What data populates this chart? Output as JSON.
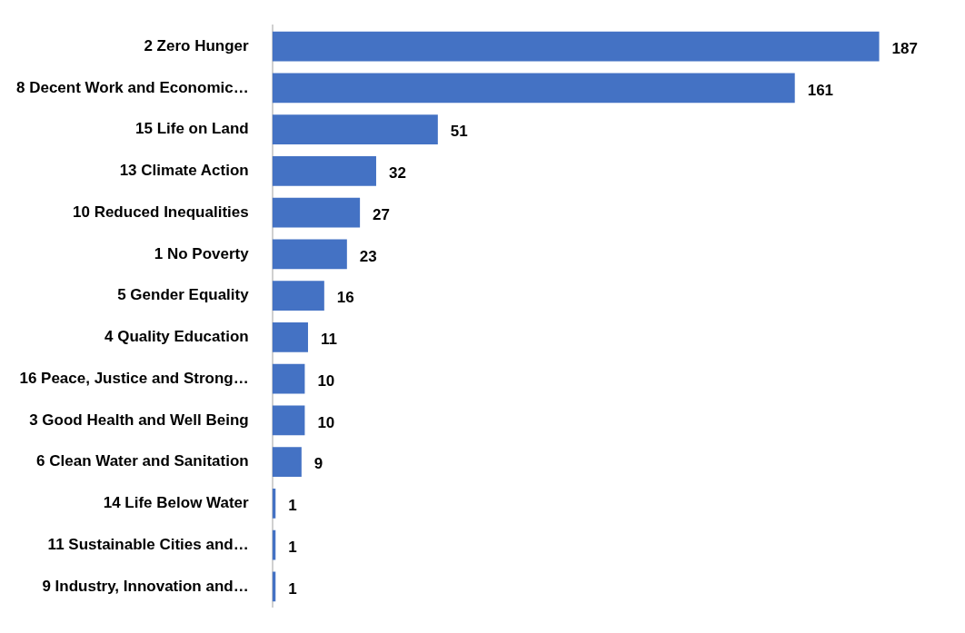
{
  "chart_data": {
    "type": "bar",
    "orientation": "horizontal",
    "categories": [
      "2 Zero Hunger",
      "8 Decent Work and Economic…",
      "15 Life on Land",
      "13 Climate Action",
      "10 Reduced Inequalities",
      "1 No Poverty",
      "5 Gender Equality",
      "4 Quality Education",
      "16 Peace, Justice and Strong…",
      "3 Good Health and Well Being",
      "6 Clean Water and Sanitation",
      "14 Life Below Water",
      "11 Sustainable Cities and…",
      "9 Industry, Innovation and…"
    ],
    "values": [
      187,
      161,
      51,
      32,
      27,
      23,
      16,
      11,
      10,
      10,
      9,
      1,
      1,
      1
    ],
    "color": "#4472c4",
    "data_labels": true
  }
}
